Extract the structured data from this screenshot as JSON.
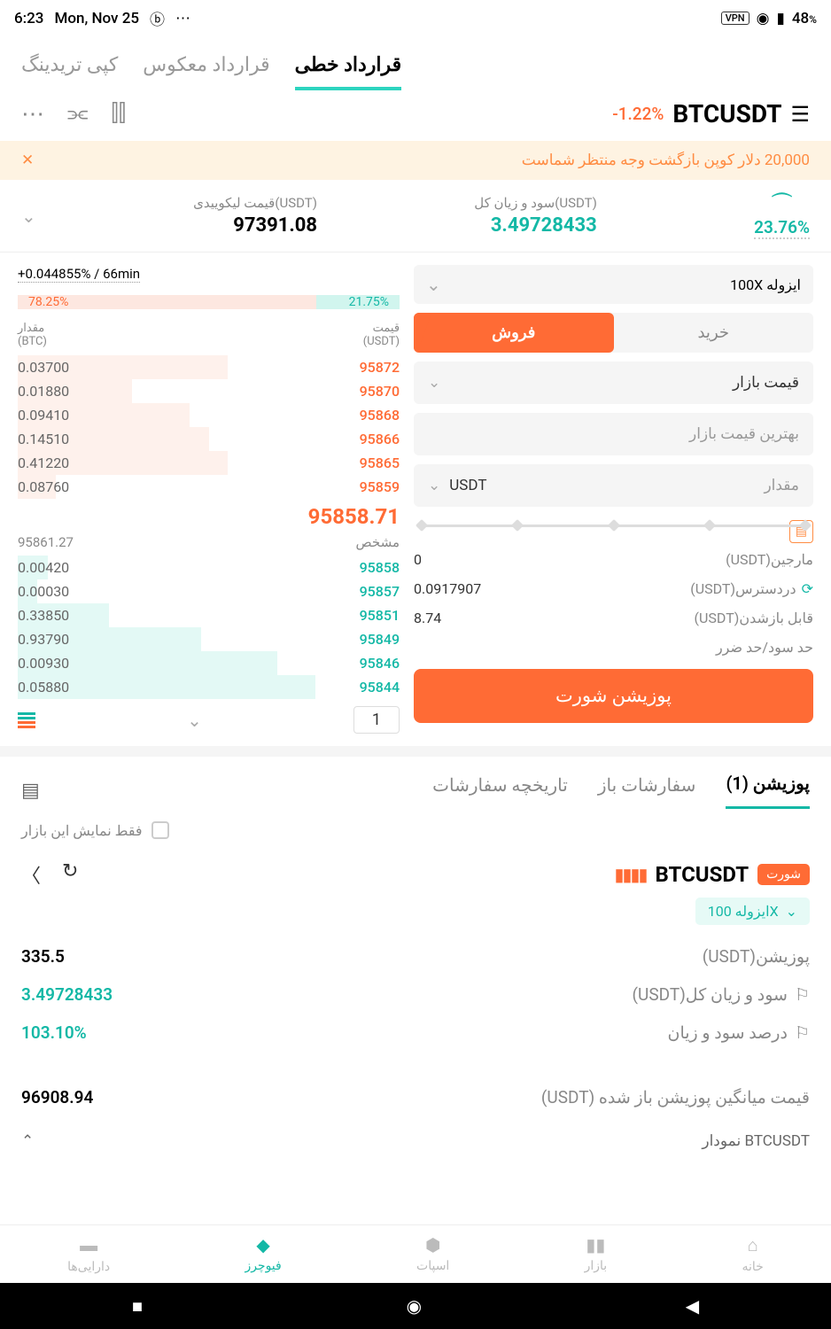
{
  "status": {
    "time": "6:23",
    "date": "Mon, Nov 25",
    "battery": "48",
    "battery_suffix": "%"
  },
  "top_tabs": {
    "linear": "قرارداد خطی",
    "inverse": "قرارداد معکوس",
    "copy": "کپی تریدینگ"
  },
  "pair": {
    "symbol": "BTCUSDT",
    "change": "-1.22%"
  },
  "notice": {
    "text": "20,000 دلار کوپن بازگشت وجه منتظر شماست"
  },
  "stats": {
    "liq_label": "قیمت لیکوییدی(USDT)",
    "liq_value": "97391.08",
    "pnl_label": "سود و زیان کل(USDT)",
    "pnl_value": "3.49728433",
    "percent": "23.76%"
  },
  "funding": {
    "text": "+0.044855% / 66min"
  },
  "ratio": {
    "sell": "78.25%",
    "sell_width": "78.25%",
    "buy": "21.75%",
    "buy_width": "21.75%"
  },
  "ob_header": {
    "amount_label": "مقدار",
    "amount_unit": "(BTC)",
    "price_label": "قیمت",
    "price_unit": "(USDT)"
  },
  "asks": [
    {
      "amount": "0.03700",
      "price": "95872",
      "depth": "55%"
    },
    {
      "amount": "0.01880",
      "price": "95870",
      "depth": "30%"
    },
    {
      "amount": "0.09410",
      "price": "95868",
      "depth": "45%"
    },
    {
      "amount": "0.14510",
      "price": "95866",
      "depth": "50%"
    },
    {
      "amount": "0.41220",
      "price": "95865",
      "depth": "55%"
    },
    {
      "amount": "0.08760",
      "price": "95859",
      "depth": "10%"
    }
  ],
  "mid_price": "95858.71",
  "mark_price": "95861.27",
  "mark_label": "مشخص",
  "bids": [
    {
      "amount": "0.00420",
      "price": "95858",
      "depth": "8%"
    },
    {
      "amount": "0.00030",
      "price": "95857",
      "depth": "5%"
    },
    {
      "amount": "0.33850",
      "price": "95851",
      "depth": "24%"
    },
    {
      "amount": "0.93790",
      "price": "95849",
      "depth": "48%"
    },
    {
      "amount": "0.00930",
      "price": "95846",
      "depth": "68%"
    },
    {
      "amount": "0.05880",
      "price": "95844",
      "depth": "78%"
    }
  ],
  "ob_qty": "1",
  "leverage": {
    "mode": "ایزوله",
    "value": "100X"
  },
  "buysell": {
    "buy": "خرید",
    "sell": "فروش"
  },
  "order_type": "قیمت بازار",
  "best_price": "بهترین قیمت بازار",
  "amount_label": "مقدار",
  "unit": "USDT",
  "info": {
    "margin_label": "مارجین(USDT)",
    "margin_val": "0",
    "available_label": "دردسترس(USDT)",
    "available_val": "0.0917907",
    "openable_label": "قابل بازشدن(USDT)",
    "openable_val": "8.74",
    "tpsl_label": "حد سود/حد ضرر"
  },
  "submit": "پوزیشن شورت",
  "pos_tabs": {
    "position": "پوزیشن (1)",
    "open_orders": "سفارشات باز",
    "history": "تاریخچه سفارشات"
  },
  "filter": "فقط نمایش این بازار",
  "position": {
    "badge": "شورت",
    "symbol": "BTCUSDT",
    "leverage": "ایزوله 100X",
    "size_label": "پوزیشن(USDT)",
    "size_val": "335.5",
    "pnl_label": "سود و زیان کل(USDT)",
    "pnl_val": "3.49728433",
    "pnl_pct_label": "درصد سود و زیان",
    "pnl_pct_val": "103.10%",
    "avg_label": "قیمت میانگین پوزیشن باز شده (USDT)",
    "avg_val": "96908.94"
  },
  "chart_label": "نمودار BTCUSDT",
  "nav": {
    "assets": "دارایی‌ها",
    "futures": "فیوچرز",
    "spot": "اسپات",
    "market": "بازار",
    "home": "خانه"
  },
  "colors": {
    "teal": "#14b8a6",
    "orange": "#ff6b35",
    "ask_bg": "#fde7e0",
    "bid_bg": "#d1f5ee"
  }
}
